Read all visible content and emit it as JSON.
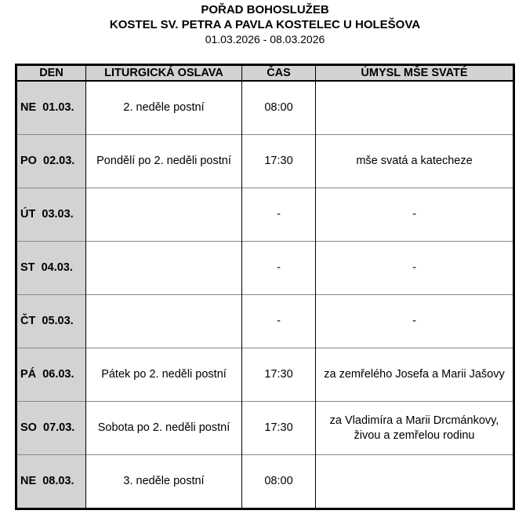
{
  "header": {
    "title": "POŘAD BOHOSLUŽEB",
    "church": "KOSTEL SV. PETRA A PAVLA KOSTELEC U HOLEŠOVA",
    "range": "01.03.2026 - 08.03.2026"
  },
  "columns": [
    "DEN",
    "LITURGICKÁ OSLAVA",
    "ČAS",
    "ÚMYSL MŠE SVATÉ"
  ],
  "rows": [
    {
      "den": "NE  01.03.",
      "oslava": "2. neděle postní",
      "cas": "08:00",
      "umysl": ""
    },
    {
      "den": "PO  02.03.",
      "oslava": "Pondělí po 2. neděli postní",
      "cas": "17:30",
      "umysl": "mše svatá a katecheze"
    },
    {
      "den": "ÚT  03.03.",
      "oslava": "",
      "cas": "-",
      "umysl": "-"
    },
    {
      "den": "ST  04.03.",
      "oslava": "",
      "cas": "-",
      "umysl": "-"
    },
    {
      "den": "ČT  05.03.",
      "oslava": "",
      "cas": "-",
      "umysl": "-"
    },
    {
      "den": "PÁ  06.03.",
      "oslava": "Pátek po 2. neděli postní",
      "cas": "17:30",
      "umysl": "za zemřelého Josefa a Marii Jašovy"
    },
    {
      "den": "SO  07.03.",
      "oslava": "Sobota po 2. neděli postní",
      "cas": "17:30",
      "umysl": "za Vladimíra a Marii Drcmánkovy, živou a zemřelou rodinu"
    },
    {
      "den": "NE  08.03.",
      "oslava": "3. neděle postní",
      "cas": "08:00",
      "umysl": ""
    }
  ]
}
